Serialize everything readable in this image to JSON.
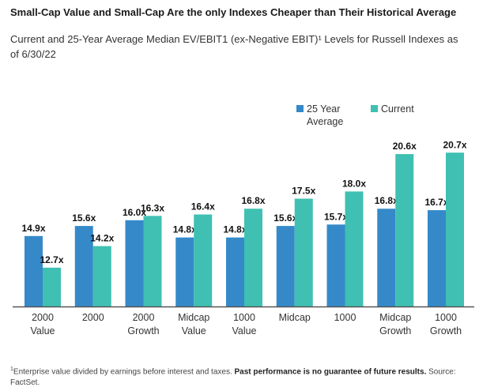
{
  "colors": {
    "avg": "#3589c9",
    "current": "#3fc0b2",
    "axis": "#555555"
  },
  "chart_data": {
    "type": "bar",
    "title": "Small-Cap Value and Small-Cap Are the only Indexes Cheaper than Their Historical Average",
    "subtitle": "Current and 25-Year Average Median EV/EBIT1 (ex-Negative EBIT)¹ Levels for Russell Indexes as of 6/30/22",
    "categories": [
      [
        "2000",
        "Value"
      ],
      [
        "2000"
      ],
      [
        "2000",
        "Growth"
      ],
      [
        "Midcap",
        "Value"
      ],
      [
        "1000",
        "Value"
      ],
      [
        "Midcap"
      ],
      [
        "1000"
      ],
      [
        "Midcap",
        "Growth"
      ],
      [
        "1000",
        "Growth"
      ]
    ],
    "series": [
      {
        "name": "25 Year Average",
        "legend_lines": [
          "25 Year",
          "Average"
        ],
        "color_key": "avg",
        "values": [
          14.9,
          15.6,
          16.0,
          14.8,
          14.8,
          15.6,
          15.7,
          16.8,
          16.7
        ]
      },
      {
        "name": "Current",
        "legend_lines": [
          "Current"
        ],
        "color_key": "current",
        "values": [
          12.7,
          14.2,
          16.3,
          16.4,
          16.8,
          17.5,
          18.0,
          20.6,
          20.7
        ]
      }
    ],
    "value_suffix": "x",
    "xlabel": "",
    "ylabel": "",
    "ylim": [
      10,
      21.5
    ],
    "grid": false,
    "legend": "top-right"
  },
  "footnote": {
    "sup": "1",
    "plain1": "Enterprise value divided by earnings before interest and taxes. ",
    "bold": "Past performance is no guarantee of future results.",
    "plain2": " Source: FactSet."
  }
}
